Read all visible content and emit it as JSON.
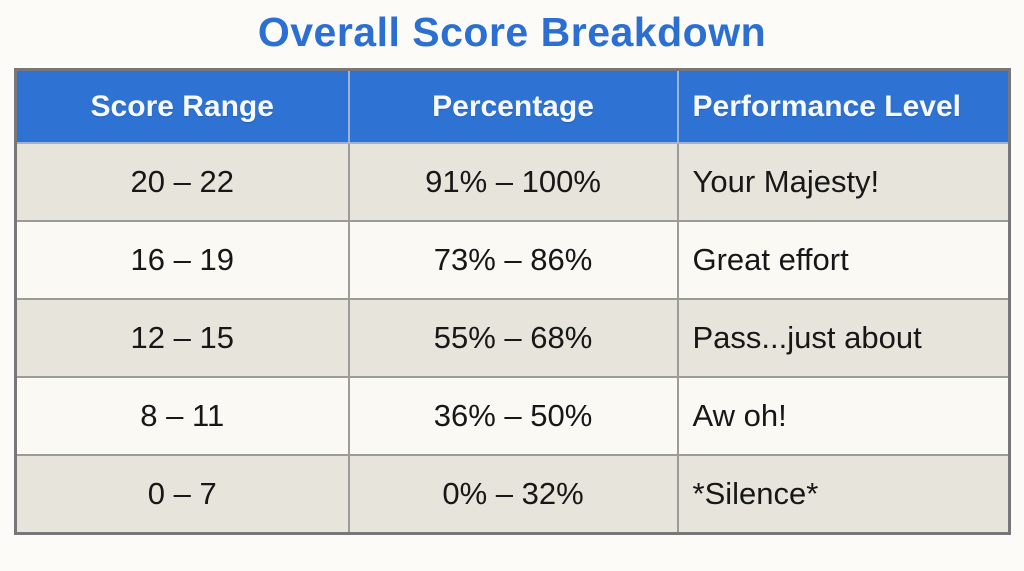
{
  "title": "Overall Score Breakdown",
  "colors": {
    "title_blue": "#2b6fd3",
    "header_bg": "#2e72d3",
    "header_text": "#f6f9fd",
    "row_odd_bg": "#e6e4db",
    "row_even_bg": "#faf9f4",
    "grid_line": "#9b9b97",
    "page_bg": "#fcfbf7"
  },
  "chart_data": {
    "type": "table",
    "title": "Overall Score Breakdown",
    "columns": [
      "Score Range",
      "Percentage",
      "Performance Level"
    ],
    "rows": [
      [
        "20 – 22",
        "91% – 100%",
        "Your Majesty!"
      ],
      [
        "16 – 19",
        "73% – 86%",
        "Great effort"
      ],
      [
        "12 – 15",
        "55% – 68%",
        "Pass...just about"
      ],
      [
        "8 – 11",
        "36% – 50%",
        "Aw oh!"
      ],
      [
        "0 – 7",
        "0% – 32%",
        "*Silence*"
      ]
    ]
  }
}
